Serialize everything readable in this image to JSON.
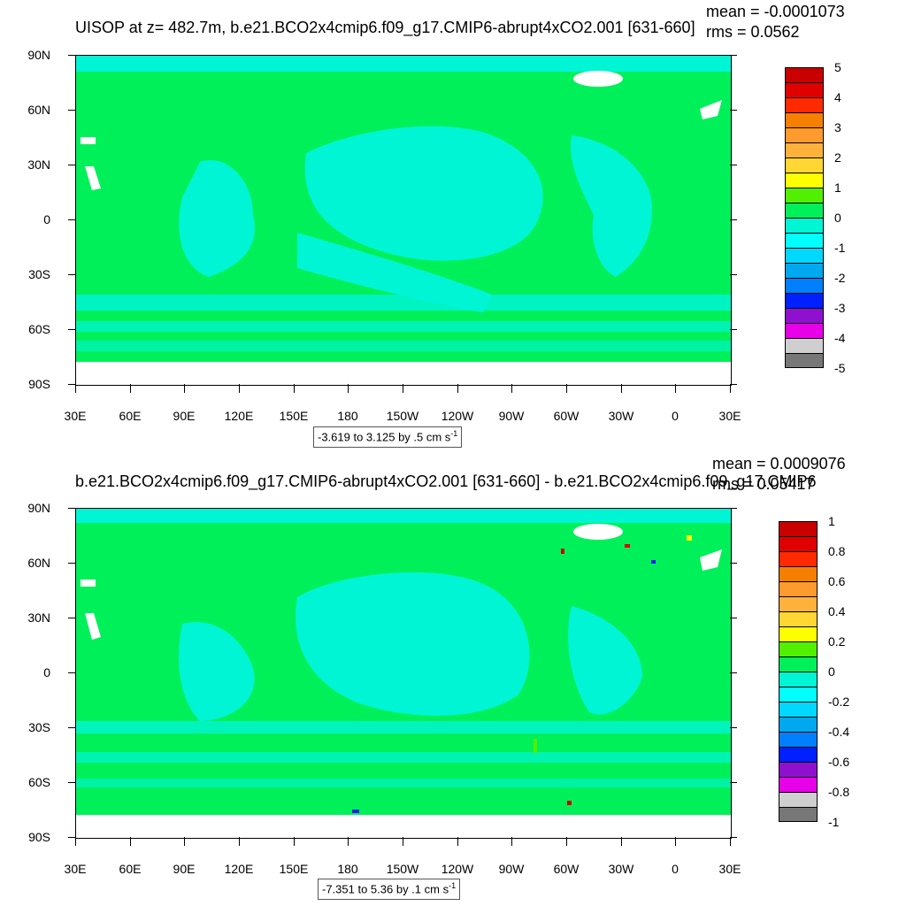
{
  "colors": {
    "land_bg": "#00f05a",
    "ocean_cyan": "#00f5d5",
    "light_cyan": "#00ffff",
    "masked": "#ffffff"
  },
  "panels": [
    {
      "id": "top",
      "title": "UISOP at z= 482.7m, b.e21.BCO2x4cmip6.f09_g17.CMIP6-abrupt4xCO2.001 [631-660]",
      "mean_text": "mean = -0.0001073",
      "rms_text": "rms = 0.0562",
      "range_main": "-3.619 to 3.125 by .5 cm s",
      "range_sup": "-1",
      "colorbar": {
        "labels": [
          "5",
          "4",
          "3",
          "2",
          "1",
          "0",
          "-1",
          "-2",
          "-3",
          "-4",
          "-5"
        ],
        "colors": [
          "#c80000",
          "#e00000",
          "#ff2a00",
          "#f77f00",
          "#ff9a2e",
          "#ffb23b",
          "#ffd633",
          "#ffff00",
          "#52f000",
          "#00f05a",
          "#00f5d5",
          "#00ffff",
          "#00d8ff",
          "#00a8f0",
          "#0080ff",
          "#0020ff",
          "#9010d0",
          "#e800e8",
          "#cfcfcf",
          "#777777"
        ]
      }
    },
    {
      "id": "bottom",
      "title": "b.e21.BCO2x4cmip6.f09_g17.CMIP6-abrupt4xCO2.001 [631-660] - b.e21.BCO2x4cmip6.f09_g17.CMIP6",
      "mean_text": "mean = 0.0009076",
      "rms_text": "rms = 0.05417",
      "range_main": "-7.351 to 5.36 by .1 cm s",
      "range_sup": "-1",
      "colorbar": {
        "labels": [
          "1",
          "0.8",
          "0.6",
          "0.4",
          "0.2",
          "0",
          "-0.2",
          "-0.4",
          "-0.6",
          "-0.8",
          "-1"
        ],
        "colors": [
          "#c80000",
          "#e00000",
          "#ff2a00",
          "#f77f00",
          "#ff9a2e",
          "#ffb23b",
          "#ffd633",
          "#ffff00",
          "#52f000",
          "#00f05a",
          "#00f5d5",
          "#00ffff",
          "#00d8ff",
          "#00a8f0",
          "#0080ff",
          "#0020ff",
          "#9010d0",
          "#e800e8",
          "#cfcfcf",
          "#777777"
        ]
      }
    }
  ],
  "lat_labels": [
    "90N",
    "60N",
    "30N",
    "0",
    "30S",
    "60S",
    "90S"
  ],
  "lon_labels": [
    "30E",
    "60E",
    "90E",
    "120E",
    "150E",
    "180",
    "150W",
    "120W",
    "90W",
    "60W",
    "30W",
    "0",
    "30E"
  ]
}
